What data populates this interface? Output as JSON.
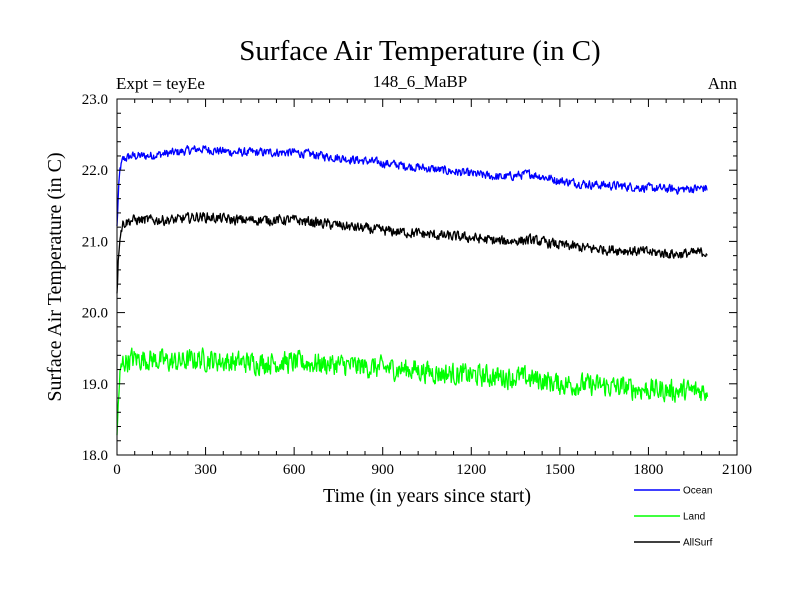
{
  "chart_data": {
    "type": "line",
    "title": "Surface Air Temperature (in C)",
    "subtitle": "148_6_MaBP",
    "experiment_label": "Expt = teyEe",
    "season_label": "Ann",
    "xlabel": "Time (in years since start)",
    "ylabel": "Surface Air Temperature (in C)",
    "xlim": [
      0,
      2100
    ],
    "ylim": [
      18.0,
      23.0
    ],
    "xticks": [
      0,
      300,
      600,
      900,
      1200,
      1500,
      1800,
      2100
    ],
    "xtick_labels": [
      "0",
      "300",
      "600",
      "900",
      "1200",
      "1500",
      "1800",
      "2100"
    ],
    "yticks": [
      18.0,
      19.0,
      20.0,
      21.0,
      22.0,
      23.0
    ],
    "ytick_labels": [
      "18.0",
      "19.0",
      "20.0",
      "21.0",
      "22.0",
      "23.0"
    ],
    "grid": false,
    "legend_position": "bottom-right, outside plot",
    "series": [
      {
        "name": "Ocean",
        "color": "#0000ff",
        "x": [
          0,
          5,
          10,
          20,
          50,
          100,
          200,
          280,
          400,
          600,
          700,
          800,
          900,
          1000,
          1100,
          1200,
          1300,
          1400,
          1500,
          1600,
          1700,
          1800,
          1900,
          2000
        ],
        "values": [
          21.2,
          21.7,
          22.0,
          22.15,
          22.2,
          22.2,
          22.25,
          22.3,
          22.25,
          22.25,
          22.2,
          22.15,
          22.1,
          22.05,
          22.0,
          21.95,
          21.9,
          21.95,
          21.85,
          21.8,
          21.78,
          21.75,
          21.73,
          21.75
        ],
        "noise_amplitude": 0.06
      },
      {
        "name": "Land",
        "color": "#00ff00",
        "x": [
          0,
          5,
          10,
          20,
          50,
          100,
          200,
          280,
          400,
          600,
          700,
          800,
          900,
          1000,
          1100,
          1200,
          1300,
          1400,
          1500,
          1600,
          1700,
          1800,
          1900,
          2000
        ],
        "values": [
          18.2,
          18.8,
          19.1,
          19.3,
          19.35,
          19.35,
          19.3,
          19.35,
          19.3,
          19.3,
          19.28,
          19.25,
          19.22,
          19.2,
          19.15,
          19.12,
          19.1,
          19.08,
          19.0,
          18.98,
          18.95,
          18.92,
          18.9,
          18.9
        ],
        "noise_amplitude": 0.15
      },
      {
        "name": "AllSurf",
        "color": "#000000",
        "x": [
          0,
          5,
          10,
          20,
          50,
          100,
          200,
          280,
          400,
          600,
          700,
          800,
          900,
          1000,
          1100,
          1200,
          1300,
          1400,
          1500,
          1600,
          1700,
          1800,
          1900,
          2000
        ],
        "values": [
          20.3,
          20.8,
          21.1,
          21.25,
          21.3,
          21.3,
          21.3,
          21.35,
          21.3,
          21.3,
          21.25,
          21.2,
          21.15,
          21.12,
          21.08,
          21.05,
          21.0,
          21.02,
          20.95,
          20.9,
          20.88,
          20.85,
          20.82,
          20.85
        ],
        "noise_amplitude": 0.07
      }
    ]
  }
}
